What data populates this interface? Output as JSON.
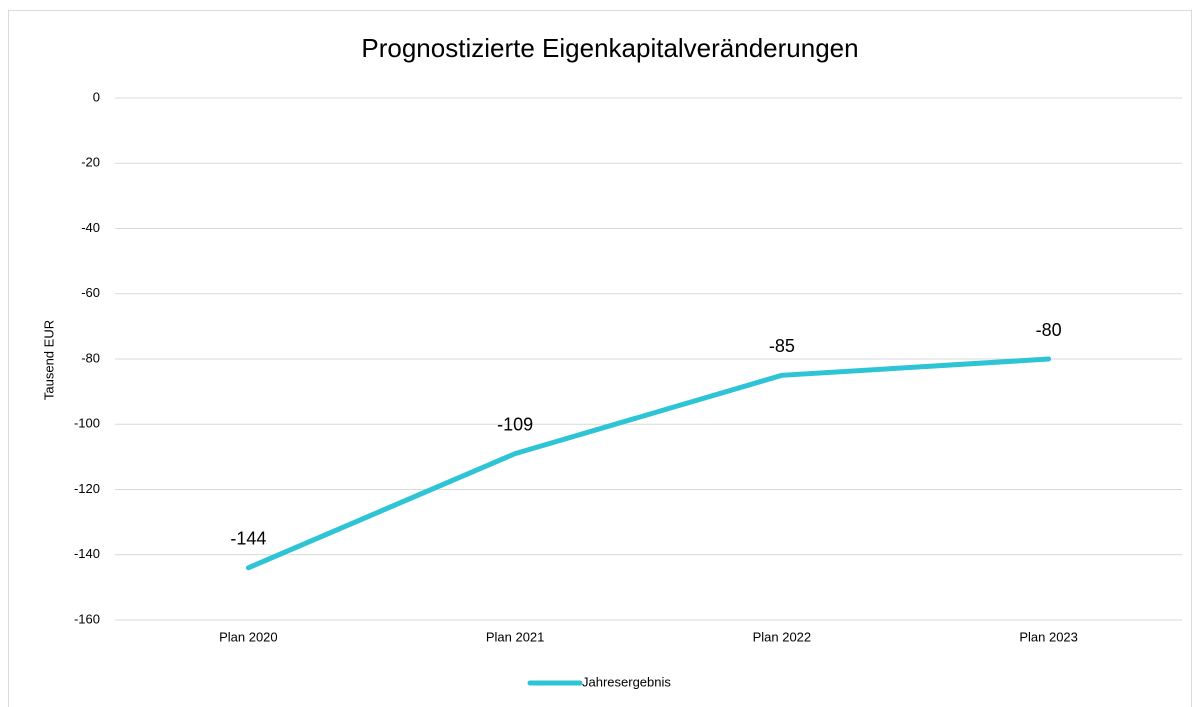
{
  "chart_data": {
    "type": "line",
    "title": "Prognostizierte Eigenkapitalveränderungen",
    "y_label": "Tausend EUR",
    "categories": [
      "Plan 2020",
      "Plan 2021",
      "Plan 2022",
      "Plan 2023"
    ],
    "series": [
      {
        "name": "Jahresergebnis",
        "color": "#2ec4d6",
        "values": [
          -144,
          -109,
          -85,
          -80
        ]
      }
    ],
    "ylim": [
      -160,
      0
    ],
    "yticks": [
      0,
      -20,
      -40,
      -60,
      -80,
      -100,
      -120,
      -140,
      -160
    ],
    "grid": true,
    "data_labels": true,
    "legend": "bottom"
  }
}
